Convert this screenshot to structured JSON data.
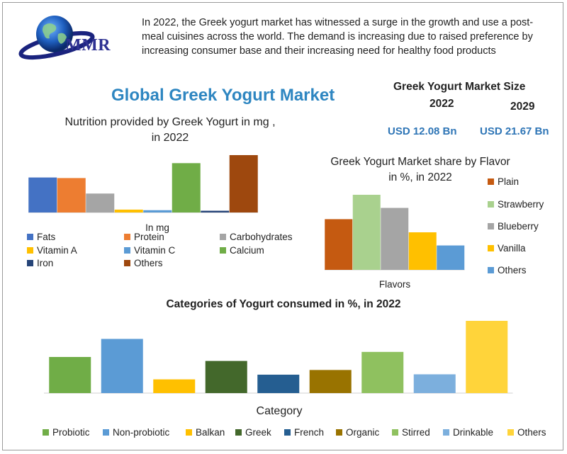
{
  "header": {
    "logo_text": "MMR",
    "intro": "In 2022, the Greek yogurt market has witnessed a surge in the growth and use a post-meal cuisines across the world. The demand is increasing due to raised preference by increasing consumer base and their increasing need for healthy food products"
  },
  "main_title": "Global Greek Yogurt Market",
  "market_size": {
    "title": "Greek Yogurt Market Size",
    "year_1": "2022",
    "year_2": "2029",
    "value_1": "USD 12.08 Bn",
    "value_2": "USD 21.67 Bn"
  },
  "colors": {
    "blue": "#4472c4",
    "orange": "#ed7d31",
    "gray": "#a5a5a5",
    "gold": "#ffc000",
    "lightblue": "#5b9bd5",
    "green": "#70ad47",
    "navy": "#264478",
    "brown": "#9e480e",
    "rust": "#c55a11",
    "lightgreen": "#a9d18e",
    "darkgreen": "#43682b",
    "darkblue": "#255e91",
    "olive": "#997300",
    "midgreen": "#8fc15f",
    "skyblue": "#7cafdd",
    "yellow": "#ffd43a"
  },
  "chart_data": [
    {
      "type": "bar",
      "title": "Nutrition provided by Greek Yogurt in mg ,\nin 2022",
      "xlabel": "In mg",
      "categories": [
        "Fats",
        "Protein",
        "Carbohydrates",
        "Vitamin A",
        "Vitamin C",
        "Calcium",
        "Iron",
        "Others"
      ],
      "values": [
        6.1,
        6.0,
        3.3,
        0.5,
        0.4,
        8.6,
        0.3,
        10.0
      ],
      "colors": [
        "#4472c4",
        "#ed7d31",
        "#a5a5a5",
        "#ffc000",
        "#5b9bd5",
        "#70ad47",
        "#264478",
        "#9e480e"
      ],
      "ylim": [
        0,
        10
      ],
      "legend": "bottom",
      "grid": false
    },
    {
      "type": "bar",
      "title": "Greek Yogurt Market share by Flavor\nin %, in 2022",
      "xlabel": "Flavors",
      "categories": [
        "Plain",
        "Strawberry",
        "Blueberry",
        "Vanilla",
        "Others"
      ],
      "values": [
        27,
        40,
        33,
        20,
        13
      ],
      "colors": [
        "#c55a11",
        "#a9d18e",
        "#a5a5a5",
        "#ffc000",
        "#5b9bd5"
      ],
      "ylim": [
        0,
        40
      ],
      "legend": "right",
      "grid": false
    },
    {
      "type": "bar",
      "title": "Categories of Yogurt consumed in %, in 2022",
      "xlabel": "Category",
      "categories": [
        "Probiotic",
        "Non-probiotic",
        "Balkan",
        "Greek",
        "French",
        "Organic",
        "Stirred",
        "Drinkable",
        "Others"
      ],
      "values": [
        10,
        15,
        3.8,
        8.9,
        5.1,
        6.4,
        11.4,
        5.2,
        20
      ],
      "colors": [
        "#70ad47",
        "#5b9bd5",
        "#ffc000",
        "#43682b",
        "#255e91",
        "#997300",
        "#8fc15f",
        "#7cafdd",
        "#ffd43a"
      ],
      "ylim": [
        0,
        20
      ],
      "legend": "bottom",
      "grid": false
    }
  ]
}
